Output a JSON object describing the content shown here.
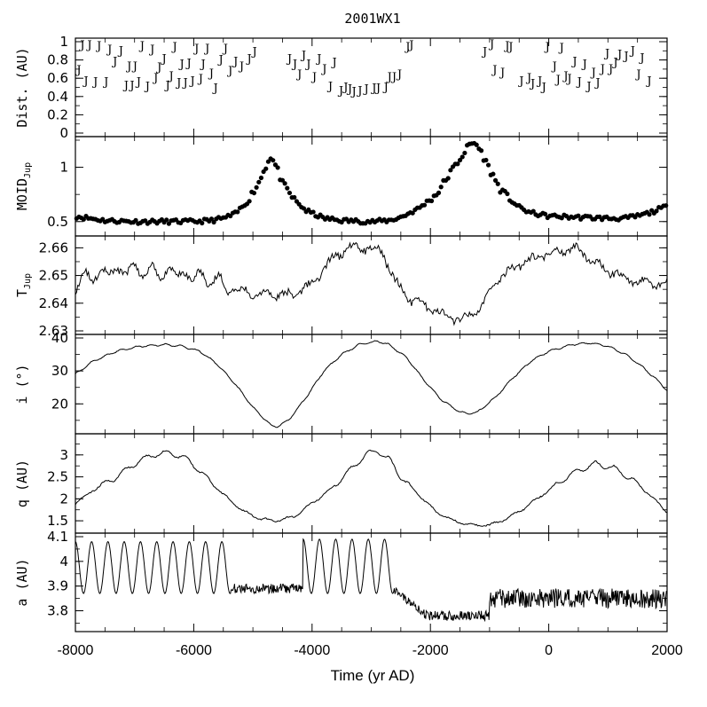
{
  "chart_data": {
    "type": "line",
    "title": "2001WX1",
    "xlabel": "Time (yr AD)",
    "xlim": [
      -8000,
      2000
    ],
    "xticks": [
      -8000,
      -6000,
      -4000,
      -2000,
      0,
      2000
    ],
    "xtick_labels": [
      "-8000",
      "-6000",
      "-4000",
      "-2000",
      "0",
      "2000"
    ],
    "panels": [
      {
        "id": "dist",
        "ylabel": "Dist. (AU)",
        "style": "marker-J",
        "marker": "J",
        "ylim": [
          0,
          1
        ],
        "yticks": [
          0,
          0.2,
          0.4,
          0.6,
          0.8,
          1
        ],
        "ytick_labels": [
          "0",
          "0.2",
          "0.4",
          "0.6",
          "0.8",
          "1"
        ],
        "points": [
          [
            -7940,
            0.7
          ],
          [
            -7880,
            0.97
          ],
          [
            -7820,
            0.58
          ],
          [
            -7760,
            0.97
          ],
          [
            -7660,
            0.57
          ],
          [
            -7600,
            0.96
          ],
          [
            -7480,
            0.57
          ],
          [
            -7420,
            0.92
          ],
          [
            -7330,
            0.79
          ],
          [
            -7230,
            0.91
          ],
          [
            -7140,
            0.53
          ],
          [
            -7090,
            0.74
          ],
          [
            -7040,
            0.53
          ],
          [
            -6990,
            0.74
          ],
          [
            -6930,
            0.57
          ],
          [
            -6870,
            0.96
          ],
          [
            -6780,
            0.52
          ],
          [
            -6700,
            0.92
          ],
          [
            -6640,
            0.61
          ],
          [
            -6580,
            0.73
          ],
          [
            -6500,
            0.82
          ],
          [
            -6440,
            0.53
          ],
          [
            -6380,
            0.63
          ],
          [
            -6320,
            0.95
          ],
          [
            -6250,
            0.56
          ],
          [
            -6200,
            0.76
          ],
          [
            -6140,
            0.56
          ],
          [
            -6080,
            0.77
          ],
          [
            -6020,
            0.58
          ],
          [
            -5950,
            0.93
          ],
          [
            -5880,
            0.6
          ],
          [
            -5840,
            0.76
          ],
          [
            -5770,
            0.93
          ],
          [
            -5700,
            0.66
          ],
          [
            -5630,
            0.5
          ],
          [
            -5540,
            0.81
          ],
          [
            -5460,
            0.93
          ],
          [
            -5380,
            0.69
          ],
          [
            -5290,
            0.79
          ],
          [
            -5190,
            0.74
          ],
          [
            -5060,
            0.82
          ],
          [
            -4970,
            0.9
          ],
          [
            -4380,
            0.82
          ],
          [
            -4290,
            0.76
          ],
          [
            -4210,
            0.65
          ],
          [
            -4140,
            0.86
          ],
          [
            -4060,
            0.76
          ],
          [
            -3960,
            0.62
          ],
          [
            -3880,
            0.82
          ],
          [
            -3790,
            0.71
          ],
          [
            -3690,
            0.52
          ],
          [
            -3620,
            0.78
          ],
          [
            -3510,
            0.47
          ],
          [
            -3430,
            0.51
          ],
          [
            -3360,
            0.49
          ],
          [
            -3290,
            0.46
          ],
          [
            -3190,
            0.47
          ],
          [
            -3080,
            0.49
          ],
          [
            -2950,
            0.5
          ],
          [
            -2880,
            0.5
          ],
          [
            -2750,
            0.51
          ],
          [
            -2690,
            0.62
          ],
          [
            -2610,
            0.62
          ],
          [
            -2520,
            0.65
          ],
          [
            -2380,
            0.95
          ],
          [
            -2320,
            0.97
          ],
          [
            -1080,
            0.9
          ],
          [
            -960,
            0.98
          ],
          [
            -910,
            0.7
          ],
          [
            -780,
            0.67
          ],
          [
            -700,
            0.96
          ],
          [
            -640,
            0.95
          ],
          [
            -460,
            0.58
          ],
          [
            -330,
            0.61
          ],
          [
            -270,
            0.55
          ],
          [
            -150,
            0.58
          ],
          [
            -80,
            0.51
          ],
          [
            -20,
            0.95
          ],
          [
            100,
            0.74
          ],
          [
            160,
            0.59
          ],
          [
            220,
            0.94
          ],
          [
            290,
            0.63
          ],
          [
            350,
            0.6
          ],
          [
            440,
            0.79
          ],
          [
            520,
            0.57
          ],
          [
            610,
            0.76
          ],
          [
            680,
            0.52
          ],
          [
            760,
            0.67
          ],
          [
            830,
            0.56
          ],
          [
            910,
            0.71
          ],
          [
            990,
            0.88
          ],
          [
            1050,
            0.71
          ],
          [
            1130,
            0.78
          ],
          [
            1200,
            0.87
          ],
          [
            1310,
            0.85
          ],
          [
            1420,
            0.91
          ],
          [
            1520,
            0.65
          ],
          [
            1580,
            0.83
          ],
          [
            1700,
            0.58
          ]
        ]
      },
      {
        "id": "moid",
        "ylabel": "MOID",
        "ylabel_sub": "Jup",
        "style": "dots",
        "ylim": [
          0.4,
          1.25
        ],
        "yticks": [
          0.5,
          1
        ],
        "ytick_labels": [
          "0.5",
          "1"
        ],
        "anchors": [
          [
            -8000,
            0.55
          ],
          [
            -7500,
            0.51
          ],
          [
            -7000,
            0.5
          ],
          [
            -6500,
            0.5
          ],
          [
            -6000,
            0.5
          ],
          [
            -5700,
            0.51
          ],
          [
            -5500,
            0.53
          ],
          [
            -5300,
            0.57
          ],
          [
            -5100,
            0.68
          ],
          [
            -4900,
            0.86
          ],
          [
            -4750,
            1.05
          ],
          [
            -4700,
            1.1
          ],
          [
            -4600,
            1.0
          ],
          [
            -4500,
            0.85
          ],
          [
            -4300,
            0.7
          ],
          [
            -4100,
            0.6
          ],
          [
            -3800,
            0.53
          ],
          [
            -3500,
            0.51
          ],
          [
            -3000,
            0.5
          ],
          [
            -2700,
            0.51
          ],
          [
            -2500,
            0.54
          ],
          [
            -2200,
            0.62
          ],
          [
            -1900,
            0.75
          ],
          [
            -1700,
            0.92
          ],
          [
            -1500,
            1.08
          ],
          [
            -1350,
            1.2
          ],
          [
            -1250,
            1.23
          ],
          [
            -1150,
            1.15
          ],
          [
            -1000,
            0.98
          ],
          [
            -800,
            0.78
          ],
          [
            -500,
            0.63
          ],
          [
            -300,
            0.58
          ],
          [
            0,
            0.55
          ],
          [
            500,
            0.54
          ],
          [
            1000,
            0.53
          ],
          [
            1300,
            0.53
          ],
          [
            1500,
            0.55
          ],
          [
            1700,
            0.58
          ],
          [
            1900,
            0.62
          ],
          [
            2000,
            0.64
          ]
        ]
      },
      {
        "id": "tjup",
        "ylabel": "T",
        "ylabel_sub": "Jup",
        "style": "line",
        "ylim": [
          2.63,
          2.663
        ],
        "yticks": [
          2.63,
          2.64,
          2.65,
          2.66
        ],
        "ytick_labels": [
          "2.63",
          "2.64",
          "2.65",
          "2.66"
        ],
        "anchors": [
          [
            -8000,
            2.647
          ],
          [
            -7600,
            2.651
          ],
          [
            -7000,
            2.652
          ],
          [
            -6400,
            2.651
          ],
          [
            -6000,
            2.65
          ],
          [
            -5600,
            2.648
          ],
          [
            -5300,
            2.645
          ],
          [
            -4800,
            2.643
          ],
          [
            -4300,
            2.643
          ],
          [
            -4000,
            2.647
          ],
          [
            -3700,
            2.655
          ],
          [
            -3400,
            2.66
          ],
          [
            -3000,
            2.66
          ],
          [
            -2800,
            2.658
          ],
          [
            -2600,
            2.648
          ],
          [
            -2400,
            2.642
          ],
          [
            -2000,
            2.638
          ],
          [
            -1700,
            2.635
          ],
          [
            -1400,
            2.634
          ],
          [
            -1100,
            2.64
          ],
          [
            -900,
            2.648
          ],
          [
            -500,
            2.654
          ],
          [
            0,
            2.658
          ],
          [
            400,
            2.66
          ],
          [
            600,
            2.658
          ],
          [
            800,
            2.654
          ],
          [
            1100,
            2.651
          ],
          [
            1400,
            2.648
          ],
          [
            1800,
            2.647
          ],
          [
            2000,
            2.647
          ]
        ]
      },
      {
        "id": "incl",
        "ylabel": "i (°)",
        "style": "line",
        "ylim": [
          12,
          40
        ],
        "yticks": [
          20,
          30,
          40
        ],
        "ytick_labels": [
          "20",
          "30",
          "40"
        ],
        "anchors": [
          [
            -8000,
            29
          ],
          [
            -7700,
            33
          ],
          [
            -7300,
            36
          ],
          [
            -6900,
            37.5
          ],
          [
            -6500,
            38
          ],
          [
            -6200,
            37.5
          ],
          [
            -5900,
            36
          ],
          [
            -5600,
            32
          ],
          [
            -5300,
            26
          ],
          [
            -5000,
            19
          ],
          [
            -4700,
            13.5
          ],
          [
            -4600,
            13
          ],
          [
            -4400,
            15
          ],
          [
            -4100,
            22
          ],
          [
            -3800,
            30
          ],
          [
            -3500,
            35
          ],
          [
            -3200,
            38
          ],
          [
            -2900,
            39
          ],
          [
            -2700,
            38
          ],
          [
            -2400,
            34
          ],
          [
            -2100,
            27
          ],
          [
            -1800,
            21
          ],
          [
            -1500,
            17.5
          ],
          [
            -1350,
            17
          ],
          [
            -1200,
            17.5
          ],
          [
            -900,
            22
          ],
          [
            -600,
            28
          ],
          [
            -300,
            33
          ],
          [
            0,
            36
          ],
          [
            400,
            38
          ],
          [
            700,
            38.5
          ],
          [
            1000,
            37.5
          ],
          [
            1300,
            35
          ],
          [
            1600,
            31
          ],
          [
            1900,
            26
          ],
          [
            2000,
            24
          ]
        ]
      },
      {
        "id": "q",
        "ylabel": "q (AU)",
        "style": "line",
        "ylim": [
          1.3,
          3.4
        ],
        "yticks": [
          1.5,
          2,
          2.5,
          3
        ],
        "ytick_labels": [
          "1.5",
          "2",
          "2.5",
          "3"
        ],
        "anchors": [
          [
            -8000,
            1.9
          ],
          [
            -7700,
            2.2
          ],
          [
            -7300,
            2.5
          ],
          [
            -7000,
            2.8
          ],
          [
            -6700,
            3.0
          ],
          [
            -6400,
            3.05
          ],
          [
            -6100,
            2.9
          ],
          [
            -5800,
            2.5
          ],
          [
            -5500,
            2.1
          ],
          [
            -5200,
            1.75
          ],
          [
            -4900,
            1.55
          ],
          [
            -4600,
            1.5
          ],
          [
            -4300,
            1.6
          ],
          [
            -4000,
            1.9
          ],
          [
            -3700,
            2.2
          ],
          [
            -3400,
            2.6
          ],
          [
            -3100,
            3.0
          ],
          [
            -2900,
            3.1
          ],
          [
            -2700,
            2.9
          ],
          [
            -2500,
            2.5
          ],
          [
            -2200,
            2.1
          ],
          [
            -1900,
            1.7
          ],
          [
            -1600,
            1.5
          ],
          [
            -1300,
            1.4
          ],
          [
            -1000,
            1.4
          ],
          [
            -700,
            1.55
          ],
          [
            -400,
            1.8
          ],
          [
            -100,
            2.1
          ],
          [
            200,
            2.4
          ],
          [
            500,
            2.65
          ],
          [
            800,
            2.8
          ],
          [
            1100,
            2.7
          ],
          [
            1400,
            2.45
          ],
          [
            1700,
            2.1
          ],
          [
            2000,
            1.7
          ]
        ]
      },
      {
        "id": "a",
        "ylabel": "a (AU)",
        "style": "line",
        "ylim": [
          3.73,
          4.1
        ],
        "yticks": [
          3.8,
          3.9,
          4,
          4.1
        ],
        "ytick_labels": [
          "3.8",
          "3.9",
          "4",
          "4.1"
        ],
        "segments": [
          {
            "x_start": -8000,
            "x_end": -5380,
            "kind": "oscillation",
            "period": 275,
            "y_min": 3.87,
            "y_max": 4.08
          },
          {
            "x_start": -5380,
            "x_end": -4150,
            "kind": "noisy",
            "y_center": 3.89,
            "amplitude": 0.02
          },
          {
            "x_start": -4150,
            "x_end": -2600,
            "kind": "oscillation",
            "period": 275,
            "y_min": 3.87,
            "y_max": 4.09
          },
          {
            "x_start": -2600,
            "x_end": -2100,
            "kind": "decline",
            "y_from": 3.88,
            "y_to": 3.79
          },
          {
            "x_start": -2100,
            "x_end": -1000,
            "kind": "noisy",
            "y_center": 3.78,
            "amplitude": 0.02
          },
          {
            "x_start": -1000,
            "x_end": 2000,
            "kind": "noisy",
            "y_center": 3.85,
            "amplitude": 0.04
          }
        ]
      }
    ]
  }
}
